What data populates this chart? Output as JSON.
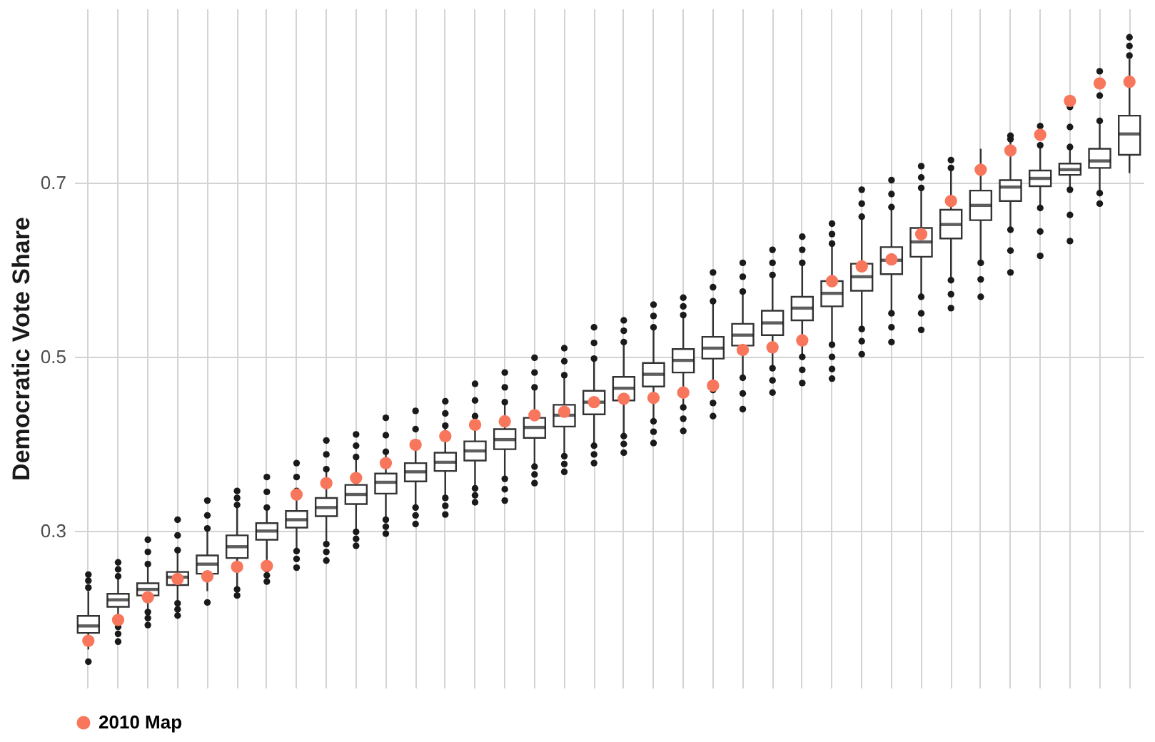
{
  "chart_data": {
    "type": "box",
    "ylabel": "Democratic Vote Share",
    "ylim": [
      0.12,
      0.9
    ],
    "yticks": [
      0.3,
      0.5,
      0.7
    ],
    "grid": true,
    "legend": "bottom",
    "tick_labels": "y",
    "categories": [
      null,
      null,
      null,
      null,
      null,
      null,
      null,
      null,
      null,
      null,
      null,
      null,
      null,
      null,
      null,
      null,
      null,
      null,
      null,
      null,
      null,
      null,
      null,
      null,
      null,
      null,
      null,
      null,
      null,
      null,
      null,
      null,
      null,
      null,
      null,
      null
    ],
    "boxes": [
      {
        "low": 0.164,
        "q1": 0.183,
        "median": 0.191,
        "q3": 0.2025,
        "high": 0.231,
        "outliers": [
          0.15,
          0.235,
          0.243,
          0.25
        ]
      },
      {
        "low": 0.193,
        "q1": 0.213,
        "median": 0.221,
        "q3": 0.228,
        "high": 0.245,
        "outliers": [
          0.19,
          0.182,
          0.173,
          0.248,
          0.256,
          0.264
        ]
      },
      {
        "low": 0.21,
        "q1": 0.226,
        "median": 0.233,
        "q3": 0.24,
        "high": 0.259,
        "outliers": [
          0.207,
          0.2,
          0.192,
          0.262,
          0.276,
          0.29
        ]
      },
      {
        "low": 0.22,
        "q1": 0.238,
        "median": 0.247,
        "q3": 0.253,
        "high": 0.275,
        "outliers": [
          0.217,
          0.21,
          0.203,
          0.278,
          0.295,
          0.313
        ]
      },
      {
        "low": 0.231,
        "q1": 0.251,
        "median": 0.262,
        "q3": 0.272,
        "high": 0.3,
        "outliers": [
          0.218,
          0.303,
          0.318,
          0.335
        ]
      },
      {
        "low": 0.236,
        "q1": 0.269,
        "median": 0.282,
        "q3": 0.295,
        "high": 0.327,
        "outliers": [
          0.233,
          0.226,
          0.33,
          0.338,
          0.346
        ]
      },
      {
        "low": 0.259,
        "q1": 0.29,
        "median": 0.3,
        "q3": 0.309,
        "high": 0.324,
        "outliers": [
          0.256,
          0.249,
          0.242,
          0.327,
          0.345,
          0.362
        ]
      },
      {
        "low": 0.28,
        "q1": 0.304,
        "median": 0.313,
        "q3": 0.323,
        "high": 0.343,
        "outliers": [
          0.277,
          0.268,
          0.258,
          0.346,
          0.362,
          0.378
        ]
      },
      {
        "low": 0.288,
        "q1": 0.317,
        "median": 0.327,
        "q3": 0.338,
        "high": 0.368,
        "outliers": [
          0.285,
          0.276,
          0.266,
          0.371,
          0.388,
          0.404
        ]
      },
      {
        "low": 0.302,
        "q1": 0.331,
        "median": 0.342,
        "q3": 0.353,
        "high": 0.382,
        "outliers": [
          0.299,
          0.291,
          0.283,
          0.385,
          0.398,
          0.411
        ]
      },
      {
        "low": 0.316,
        "q1": 0.343,
        "median": 0.356,
        "q3": 0.366,
        "high": 0.388,
        "outliers": [
          0.313,
          0.305,
          0.297,
          0.391,
          0.41,
          0.43
        ]
      },
      {
        "low": 0.33,
        "q1": 0.357,
        "median": 0.368,
        "q3": 0.378,
        "high": 0.393,
        "outliers": [
          0.327,
          0.318,
          0.308,
          0.396,
          0.417,
          0.438
        ]
      },
      {
        "low": 0.341,
        "q1": 0.369,
        "median": 0.379,
        "q3": 0.39,
        "high": 0.418,
        "outliers": [
          0.338,
          0.329,
          0.319,
          0.421,
          0.435,
          0.449
        ]
      },
      {
        "low": 0.352,
        "q1": 0.381,
        "median": 0.392,
        "q3": 0.403,
        "high": 0.429,
        "outliers": [
          0.349,
          0.341,
          0.333,
          0.432,
          0.45,
          0.469
        ]
      },
      {
        "low": 0.363,
        "q1": 0.394,
        "median": 0.405,
        "q3": 0.417,
        "high": 0.445,
        "outliers": [
          0.36,
          0.348,
          0.335,
          0.448,
          0.465,
          0.482
        ]
      },
      {
        "low": 0.377,
        "q1": 0.407,
        "median": 0.419,
        "q3": 0.43,
        "high": 0.462,
        "outliers": [
          0.374,
          0.365,
          0.355,
          0.465,
          0.482,
          0.499
        ]
      },
      {
        "low": 0.389,
        "q1": 0.42,
        "median": 0.433,
        "q3": 0.445,
        "high": 0.476,
        "outliers": [
          0.386,
          0.377,
          0.368,
          0.479,
          0.495,
          0.51
        ]
      },
      {
        "low": 0.401,
        "q1": 0.434,
        "median": 0.448,
        "q3": 0.461,
        "high": 0.495,
        "outliers": [
          0.398,
          0.388,
          0.378,
          0.498,
          0.516,
          0.534
        ]
      },
      {
        "low": 0.412,
        "q1": 0.45,
        "median": 0.464,
        "q3": 0.477,
        "high": 0.514,
        "outliers": [
          0.409,
          0.4,
          0.39,
          0.517,
          0.53,
          0.542
        ]
      },
      {
        "low": 0.429,
        "q1": 0.466,
        "median": 0.48,
        "q3": 0.493,
        "high": 0.531,
        "outliers": [
          0.426,
          0.414,
          0.401,
          0.534,
          0.547,
          0.56
        ]
      },
      {
        "low": 0.445,
        "q1": 0.482,
        "median": 0.496,
        "q3": 0.509,
        "high": 0.545,
        "outliers": [
          0.442,
          0.429,
          0.415,
          0.548,
          0.558,
          0.568
        ]
      },
      {
        "low": 0.465,
        "q1": 0.498,
        "median": 0.51,
        "q3": 0.523,
        "high": 0.561,
        "outliers": [
          0.462,
          0.447,
          0.432,
          0.564,
          0.58,
          0.597
        ]
      },
      {
        "low": 0.479,
        "q1": 0.513,
        "median": 0.525,
        "q3": 0.538,
        "high": 0.572,
        "outliers": [
          0.476,
          0.458,
          0.44,
          0.575,
          0.592,
          0.608
        ]
      },
      {
        "low": 0.49,
        "q1": 0.525,
        "median": 0.539,
        "q3": 0.553,
        "high": 0.591,
        "outliers": [
          0.487,
          0.473,
          0.459,
          0.594,
          0.608,
          0.623
        ]
      },
      {
        "low": 0.503,
        "q1": 0.542,
        "median": 0.556,
        "q3": 0.569,
        "high": 0.605,
        "outliers": [
          0.5,
          0.485,
          0.47,
          0.608,
          0.623,
          0.638
        ]
      },
      {
        "low": 0.517,
        "q1": 0.558,
        "median": 0.573,
        "q3": 0.587,
        "high": 0.627,
        "outliers": [
          0.514,
          0.5,
          0.486,
          0.475,
          0.63,
          0.641,
          0.653
        ]
      },
      {
        "low": 0.535,
        "q1": 0.576,
        "median": 0.592,
        "q3": 0.607,
        "high": 0.658,
        "outliers": [
          0.532,
          0.518,
          0.503,
          0.661,
          0.676,
          0.692
        ]
      },
      {
        "low": 0.553,
        "q1": 0.595,
        "median": 0.611,
        "q3": 0.626,
        "high": 0.669,
        "outliers": [
          0.55,
          0.534,
          0.517,
          0.672,
          0.687,
          0.703
        ]
      },
      {
        "low": 0.572,
        "q1": 0.615,
        "median": 0.632,
        "q3": 0.648,
        "high": 0.691,
        "outliers": [
          0.569,
          0.55,
          0.531,
          0.694,
          0.706,
          0.719
        ]
      },
      {
        "low": 0.591,
        "q1": 0.636,
        "median": 0.652,
        "q3": 0.669,
        "high": 0.714,
        "outliers": [
          0.588,
          0.572,
          0.556,
          0.717,
          0.726
        ]
      },
      {
        "low": 0.611,
        "q1": 0.657,
        "median": 0.674,
        "q3": 0.691,
        "high": 0.739,
        "outliers": [
          0.608,
          0.589,
          0.569
        ]
      },
      {
        "low": 0.649,
        "q1": 0.679,
        "median": 0.695,
        "q3": 0.703,
        "high": 0.747,
        "outliers": [
          0.646,
          0.622,
          0.597,
          0.75,
          0.754
        ]
      },
      {
        "low": 0.674,
        "q1": 0.696,
        "median": 0.705,
        "q3": 0.714,
        "high": 0.74,
        "outliers": [
          0.671,
          0.644,
          0.616,
          0.743,
          0.765
        ]
      },
      {
        "low": 0.695,
        "q1": 0.709,
        "median": 0.715,
        "q3": 0.722,
        "high": 0.738,
        "outliers": [
          0.692,
          0.663,
          0.633,
          0.741,
          0.764,
          0.787
        ]
      },
      {
        "low": 0.691,
        "q1": 0.717,
        "median": 0.725,
        "q3": 0.739,
        "high": 0.768,
        "outliers": [
          0.688,
          0.676,
          0.771,
          0.8,
          0.828
        ]
      },
      {
        "low": 0.711,
        "q1": 0.732,
        "median": 0.756,
        "q3": 0.777,
        "high": 0.842,
        "outliers": [
          0.846,
          0.857,
          0.867
        ]
      }
    ],
    "series": [
      {
        "type": "scatter",
        "name": "2010 Map",
        "color": "#f8765c",
        "values": [
          0.174,
          0.198,
          0.224,
          0.245,
          0.248,
          0.259,
          0.26,
          0.342,
          0.355,
          0.361,
          0.378,
          0.399,
          0.409,
          0.422,
          0.426,
          0.433,
          0.437,
          0.448,
          0.452,
          0.453,
          0.459,
          0.467,
          0.508,
          0.511,
          0.519,
          0.587,
          0.604,
          0.612,
          0.641,
          0.679,
          0.715,
          0.737,
          0.755,
          0.794,
          0.814,
          0.816
        ]
      }
    ]
  }
}
